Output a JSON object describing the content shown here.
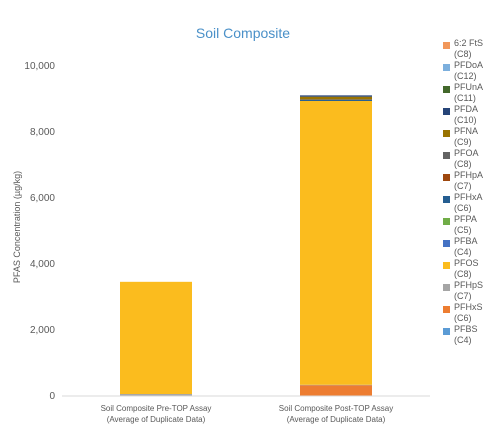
{
  "chart_data": {
    "type": "bar",
    "stacked": true,
    "title": "Soil Composite",
    "ylabel": "PFAS Concentration (µg/kg)",
    "xlabel": "",
    "ylim": [
      0,
      10000
    ],
    "yticks": [
      0,
      2000,
      4000,
      6000,
      8000,
      10000
    ],
    "ytick_labels": [
      "0",
      "2,000",
      "4,000",
      "6,000",
      "8,000",
      "10,000"
    ],
    "grid": false,
    "legend_position": "right",
    "categories": [
      "Soil Composite Pre-TOP Assay\n(Average of Duplicate Data)",
      "Soil Composite Post-TOP Assay\n(Average of Duplicate Data)"
    ],
    "series": [
      {
        "name": "PFBS\n(C4)",
        "color": "#5b9bd5",
        "values": [
          0,
          0
        ]
      },
      {
        "name": "PFHxS\n(C6)",
        "color": "#ed7d31",
        "values": [
          15,
          330
        ]
      },
      {
        "name": "PFHpS\n(C7)",
        "color": "#a5a5a5",
        "values": [
          45,
          10
        ]
      },
      {
        "name": "PFOS\n(C8)",
        "color": "#fbbc1e",
        "values": [
          3400,
          8600
        ]
      },
      {
        "name": "PFBA\n(C4)",
        "color": "#4472c4",
        "values": [
          0,
          0
        ]
      },
      {
        "name": "PFPA\n(C5)",
        "color": "#70ad47",
        "values": [
          0,
          0
        ]
      },
      {
        "name": "PFHxA\n(C6)",
        "color": "#255e91",
        "values": [
          0,
          30
        ]
      },
      {
        "name": "PFHpA\n(C7)",
        "color": "#9e480e",
        "values": [
          0,
          0
        ]
      },
      {
        "name": "PFOA\n(C8)",
        "color": "#636363",
        "values": [
          0,
          20
        ]
      },
      {
        "name": "PFNA\n(C9)",
        "color": "#997300",
        "values": [
          0,
          80
        ]
      },
      {
        "name": "PFDA\n(C10)",
        "color": "#264478",
        "values": [
          0,
          40
        ]
      },
      {
        "name": "PFUnA\n(C11)",
        "color": "#43682b",
        "values": [
          0,
          0
        ]
      },
      {
        "name": "PFDoA\n(C12)",
        "color": "#7cafdd",
        "values": [
          0,
          0
        ]
      },
      {
        "name": "6:2 FtS\n(C8)",
        "color": "#f1975a",
        "values": [
          0,
          0
        ]
      }
    ],
    "extra_series_note": "",
    "colors": {
      "title": "#4a90c8",
      "axis": "#d9d9d9",
      "text": "#595959"
    }
  }
}
